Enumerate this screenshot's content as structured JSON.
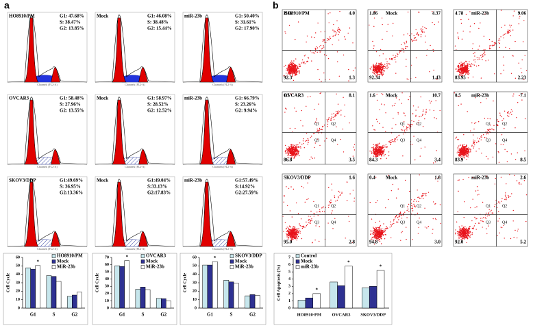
{
  "panel_labels": [
    "a",
    "b"
  ],
  "histogram_x_label": "Channels (FL2-A)",
  "cell_cycle": [
    [
      {
        "name": "HO8910/PM",
        "stats": [
          "G1: 47.68%",
          "S: 38.47%",
          "G2: 13.85%"
        ]
      },
      {
        "name": "Mock",
        "stats": [
          "G1: 46.08%",
          "S: 38.48%",
          "G2: 15.44%"
        ]
      },
      {
        "name": "miR-23b",
        "stats": [
          "G1: 50.40%",
          "S: 31.61%",
          "G2: 17.90%"
        ]
      }
    ],
    [
      {
        "name": "OVCAR3",
        "stats": [
          "G1: 58.48%",
          "S: 27.96%",
          "G2: 13.55%"
        ]
      },
      {
        "name": "Mock",
        "stats": [
          "G1: 58.97%",
          "S: 28.52%",
          "G2: 12.52%"
        ]
      },
      {
        "name": "miR-23b",
        "stats": [
          "G1: 66.79%",
          "S: 23.26%",
          "G2: 9.94%"
        ]
      }
    ],
    [
      {
        "name": "SKOV3/DDP",
        "stats": [
          "G1:49.69%",
          "S: 36.95%",
          "G2:13.36%"
        ]
      },
      {
        "name": "Mock",
        "stats": [
          "G1:49.04%",
          "S:33.13%",
          "G2:17.83%"
        ]
      },
      {
        "name": "miR-23b",
        "stats": [
          "G1:57.49%",
          "S:14.92%",
          "G2:27.59%"
        ]
      }
    ]
  ],
  "apoptosis": [
    [
      {
        "name": "HO8910/PM",
        "quadrants": {
          "ul": "2.41",
          "ur": "4.0",
          "ll": "92.3",
          "lr": "1.3"
        }
      },
      {
        "name": "Mock",
        "quadrants": {
          "ul": "1.86",
          "ur": "4.37",
          "ll": "92.34",
          "lr": "1.43"
        }
      },
      {
        "name": "miR-23b",
        "quadrants": {
          "ul": "4.78",
          "ur": "9.06",
          "ll": "83.95",
          "lr": "2.23"
        }
      }
    ],
    [
      {
        "name": "OVCAR3",
        "quadrants": {
          "ul": "1.5",
          "ur": "8.1",
          "ll": "86.8",
          "lr": "3.5"
        }
      },
      {
        "name": "Mock",
        "quadrants": {
          "ul": "1.6",
          "ur": "10.7",
          "ll": "84.3",
          "lr": "3.4"
        }
      },
      {
        "name": "miR-23b",
        "quadrants": {
          "ul": "0.5",
          "ur": "7.1",
          "ll": "83.9",
          "lr": "8.5"
        }
      }
    ],
    [
      {
        "name": "SKOV3/DDP",
        "quadrants": {
          "ur": "1.6",
          "ll": "95.0",
          "lr": "2.8"
        }
      },
      {
        "name": "Mock",
        "quadrants": {
          "ul": "0.4",
          "ur": "1.8",
          "ll": "94.8",
          "lr": "3.0"
        }
      },
      {
        "name": "miR-23b",
        "quadrants": {
          "ur": "2.6",
          "ll": "92.0",
          "lr": "5.2"
        }
      }
    ]
  ],
  "quadrant_names": [
    "Q1",
    "Q2",
    "Q3",
    "Q4"
  ],
  "chart_data": [
    {
      "type": "bar",
      "y_label": "Cell Cycle",
      "categories": [
        "G1",
        "S",
        "G2"
      ],
      "ylim": [
        0,
        60
      ],
      "yticks": [
        0,
        10,
        20,
        30,
        40,
        50,
        60
      ],
      "series": [
        {
          "name": "HO8910/PM",
          "color": "#c6e6ec",
          "values": [
            47.7,
            38.5,
            13.9
          ]
        },
        {
          "name": "Mock",
          "color": "#2e3192",
          "values": [
            46.1,
            37.5,
            15.4
          ]
        },
        {
          "name": "MiR-23b",
          "color": "#ffffff",
          "values": [
            50.4,
            31.6,
            19
          ]
        }
      ],
      "annotations": [
        "*"
      ]
    },
    {
      "type": "bar",
      "y_label": "Cell Cycle",
      "categories": [
        "G1",
        "S",
        "G2"
      ],
      "ylim": [
        0,
        70
      ],
      "yticks": [
        0,
        10,
        20,
        30,
        40,
        50,
        60,
        70
      ],
      "series": [
        {
          "name": "OVCAR3",
          "color": "#c6e6ec",
          "values": [
            58.5,
            26,
            13.5
          ]
        },
        {
          "name": "Mock",
          "color": "#2e3192",
          "values": [
            57.5,
            29,
            13
          ]
        },
        {
          "name": "MiR-23b",
          "color": "#ffffff",
          "values": [
            65.5,
            25.5,
            10
          ]
        }
      ],
      "annotations": [
        "*"
      ]
    },
    {
      "type": "bar",
      "y_label": "Cell Cycle",
      "categories": [
        "G1",
        "S",
        "G2"
      ],
      "ylim": [
        0,
        60
      ],
      "yticks": [
        0,
        10,
        20,
        30,
        40,
        50,
        60
      ],
      "series": [
        {
          "name": "SKOV3/DDP",
          "color": "#c6e6ec",
          "values": [
            51,
            33,
            14.5
          ]
        },
        {
          "name": "Mock",
          "color": "#2e3192",
          "values": [
            51,
            31,
            16
          ]
        },
        {
          "name": "MiR-23b",
          "color": "#ffffff",
          "values": [
            55,
            29.5,
            15
          ]
        }
      ],
      "annotations": [
        "*"
      ]
    },
    {
      "type": "bar",
      "y_label": "Cell Apoptosis (%)",
      "categories": [
        "HO8910-PM",
        "OVCAR3",
        "SKOV3/DDP"
      ],
      "ylim": [
        0,
        7
      ],
      "yticks": [
        0,
        1,
        2,
        3,
        4,
        5,
        6,
        7
      ],
      "series": [
        {
          "name": "Control",
          "color": "#c6e6ec",
          "values": [
            1.1,
            3.6,
            2.8
          ]
        },
        {
          "name": "Mock",
          "color": "#2e3192",
          "values": [
            1.4,
            3.1,
            3.0
          ]
        },
        {
          "name": "miR-23b",
          "color": "#ffffff",
          "values": [
            2.0,
            5.8,
            5.2
          ]
        }
      ],
      "annotations": [
        "*",
        "*",
        "*"
      ]
    }
  ]
}
